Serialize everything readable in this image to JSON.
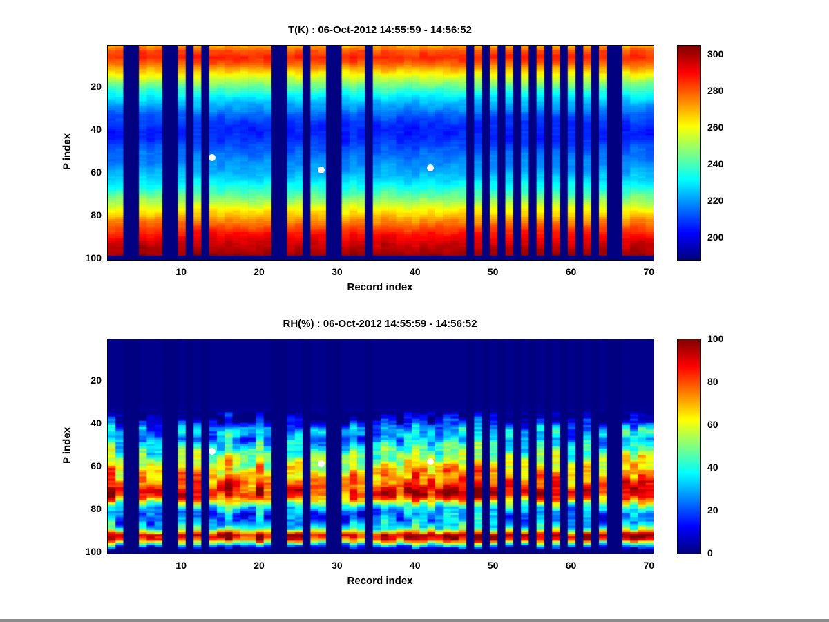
{
  "figure": {
    "background": "#ffffff",
    "bottom_edge_color": "#8c8c8c",
    "marker_color": "#ffffff"
  },
  "chart_data": [
    {
      "type": "heatmap",
      "title": "T(K) : 06-Oct-2012 14:55:59 - 14:56:52",
      "xlabel": "Record index",
      "ylabel": "P index",
      "x_range": [
        1,
        70
      ],
      "y_range": [
        1,
        100
      ],
      "y_direction": "reverse",
      "grid": false,
      "x_ticks": [
        10,
        20,
        30,
        40,
        50,
        60,
        70
      ],
      "y_ticks": [
        20,
        40,
        60,
        80,
        100
      ],
      "colormap": "jet",
      "colorbar": {
        "min": 188,
        "max": 305,
        "ticks": [
          200,
          220,
          240,
          260,
          280,
          300
        ]
      },
      "missing_records": [
        3,
        4,
        8,
        9,
        11,
        13,
        22,
        23,
        26,
        29,
        30,
        34,
        47,
        49,
        51,
        53,
        55,
        57,
        59,
        61,
        63,
        65,
        66
      ],
      "markers": [
        {
          "record": 14,
          "p": 53
        },
        {
          "record": 28,
          "p": 59
        },
        {
          "record": 42,
          "p": 58
        }
      ],
      "profile_points": [
        [
          1,
          272
        ],
        [
          3,
          281
        ],
        [
          6,
          286
        ],
        [
          9,
          279
        ],
        [
          12,
          268
        ],
        [
          15,
          258
        ],
        [
          18,
          248
        ],
        [
          21,
          239
        ],
        [
          24,
          231
        ],
        [
          27,
          224
        ],
        [
          30,
          219
        ],
        [
          33,
          213
        ],
        [
          36,
          209
        ],
        [
          40,
          206
        ],
        [
          44,
          207
        ],
        [
          48,
          212
        ],
        [
          52,
          216
        ],
        [
          56,
          219
        ],
        [
          60,
          223
        ],
        [
          64,
          229
        ],
        [
          68,
          237
        ],
        [
          72,
          247
        ],
        [
          76,
          258
        ],
        [
          80,
          268
        ],
        [
          84,
          278
        ],
        [
          88,
          287
        ],
        [
          92,
          294
        ],
        [
          95,
          298
        ],
        [
          98,
          301
        ],
        [
          99,
          189
        ],
        [
          100,
          189
        ]
      ],
      "noise": {
        "column": 2,
        "cell": 1.5,
        "wave": 1.5,
        "floor": 2
      }
    },
    {
      "type": "heatmap",
      "title": "RH(%) : 06-Oct-2012 14:55:59 - 14:56:52",
      "xlabel": "Record index",
      "ylabel": "P index",
      "x_range": [
        1,
        70
      ],
      "y_range": [
        1,
        100
      ],
      "y_direction": "reverse",
      "grid": false,
      "x_ticks": [
        10,
        20,
        30,
        40,
        50,
        60,
        70
      ],
      "y_ticks": [
        20,
        40,
        60,
        80,
        100
      ],
      "colormap": "jet",
      "colorbar": {
        "min": 0,
        "max": 100,
        "ticks": [
          0,
          20,
          40,
          60,
          80,
          100
        ]
      },
      "missing_records": [
        3,
        4,
        8,
        9,
        11,
        13,
        22,
        23,
        26,
        29,
        30,
        34,
        47,
        49,
        51,
        53,
        55,
        57,
        59,
        61,
        63,
        65,
        66
      ],
      "markers": [
        {
          "record": 14,
          "p": 53
        },
        {
          "record": 28,
          "p": 59
        },
        {
          "record": 42,
          "p": 58
        }
      ],
      "profile_points": [
        [
          1,
          1
        ],
        [
          30,
          1
        ],
        [
          34,
          2
        ],
        [
          37,
          6
        ],
        [
          39,
          12
        ],
        [
          41,
          22
        ],
        [
          43,
          32
        ],
        [
          45,
          34
        ],
        [
          47,
          30
        ],
        [
          49,
          36
        ],
        [
          51,
          42
        ],
        [
          53,
          46
        ],
        [
          55,
          52
        ],
        [
          57,
          58
        ],
        [
          59,
          63
        ],
        [
          61,
          67
        ],
        [
          63,
          70
        ],
        [
          65,
          74
        ],
        [
          67,
          79
        ],
        [
          69,
          84
        ],
        [
          71,
          90
        ],
        [
          73,
          88
        ],
        [
          75,
          76
        ],
        [
          77,
          55
        ],
        [
          79,
          38
        ],
        [
          81,
          29
        ],
        [
          83,
          25
        ],
        [
          85,
          27
        ],
        [
          87,
          33
        ],
        [
          89,
          45
        ],
        [
          91,
          80
        ],
        [
          92,
          95
        ],
        [
          93,
          92
        ],
        [
          94,
          85
        ],
        [
          95,
          65
        ],
        [
          96,
          45
        ],
        [
          97,
          25
        ],
        [
          98,
          10
        ],
        [
          99,
          1
        ],
        [
          100,
          1
        ]
      ],
      "noise": {
        "column": 10,
        "cell": 6,
        "wave": 8,
        "floor": 3
      }
    }
  ]
}
